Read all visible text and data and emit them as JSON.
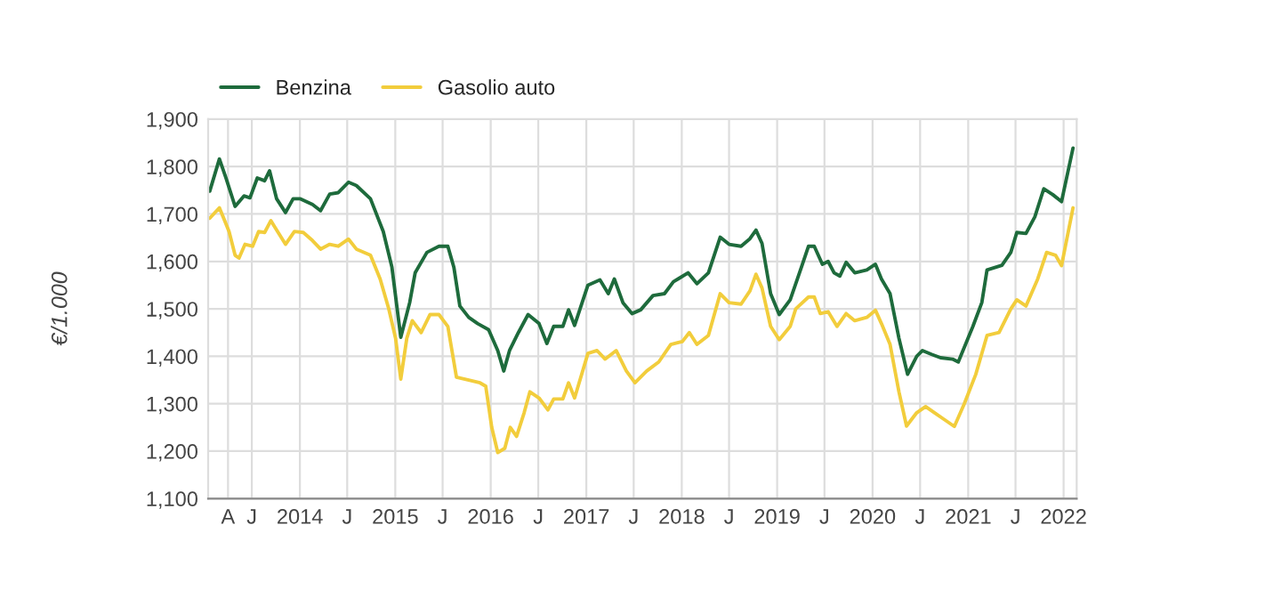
{
  "chart_data": {
    "type": "line",
    "ylabel": "€/1.000",
    "legend": "top left",
    "grid": true,
    "line_style": "solid",
    "xlim": [
      "2013-01-15",
      "2022-02-20"
    ],
    "xticks": [
      {
        "value": "2013-04-01",
        "label": "A"
      },
      {
        "value": "2013-07-01",
        "label": "J"
      },
      {
        "value": "2014-01-01",
        "label": "2014"
      },
      {
        "value": "2014-07-01",
        "label": "J"
      },
      {
        "value": "2015-01-01",
        "label": "2015"
      },
      {
        "value": "2015-07-01",
        "label": "J"
      },
      {
        "value": "2016-01-01",
        "label": "2016"
      },
      {
        "value": "2016-07-01",
        "label": "J"
      },
      {
        "value": "2017-01-01",
        "label": "2017"
      },
      {
        "value": "2017-07-01",
        "label": "J"
      },
      {
        "value": "2018-01-01",
        "label": "2018"
      },
      {
        "value": "2018-07-01",
        "label": "J"
      },
      {
        "value": "2019-01-01",
        "label": "2019"
      },
      {
        "value": "2019-07-01",
        "label": "J"
      },
      {
        "value": "2020-01-01",
        "label": "2020"
      },
      {
        "value": "2020-07-01",
        "label": "J"
      },
      {
        "value": "2021-01-01",
        "label": "2021"
      },
      {
        "value": "2021-07-01",
        "label": "J"
      },
      {
        "value": "2022-01-01",
        "label": "2022"
      }
    ],
    "ylim": [
      1100,
      1900
    ],
    "yticks": [
      {
        "value": 1100,
        "label": "1,100"
      },
      {
        "value": 1200,
        "label": "1,200"
      },
      {
        "value": 1300,
        "label": "1,300"
      },
      {
        "value": 1400,
        "label": "1,400"
      },
      {
        "value": 1500,
        "label": "1,500"
      },
      {
        "value": 1600,
        "label": "1,600"
      },
      {
        "value": 1700,
        "label": "1,700"
      },
      {
        "value": 1800,
        "label": "1,800"
      },
      {
        "value": 1900,
        "label": "1,900"
      }
    ],
    "series": [
      {
        "name": "Benzina",
        "color": "#1e6b3c",
        "x": [
          "2013-01-21",
          "2013-02-27",
          "2013-03-24",
          "2013-04-28",
          "2013-06-01",
          "2013-06-24",
          "2013-07-22",
          "2013-08-19",
          "2013-09-07",
          "2013-10-04",
          "2013-11-07",
          "2013-12-06",
          "2014-01-03",
          "2014-02-18",
          "2014-03-21",
          "2014-04-25",
          "2014-05-28",
          "2014-07-06",
          "2014-08-05",
          "2014-09-28",
          "2014-11-16",
          "2014-12-19",
          "2015-01-22",
          "2015-02-25",
          "2015-03-18",
          "2015-05-02",
          "2015-06-17",
          "2015-07-21",
          "2015-08-13",
          "2015-09-05",
          "2015-10-09",
          "2015-11-12",
          "2015-12-24",
          "2016-01-28",
          "2016-02-20",
          "2016-03-13",
          "2016-04-16",
          "2016-05-23",
          "2016-07-04",
          "2016-08-03",
          "2016-08-29",
          "2016-10-03",
          "2016-10-25",
          "2016-11-17",
          "2017-01-07",
          "2017-02-22",
          "2017-03-26",
          "2017-04-18",
          "2017-05-21",
          "2017-06-25",
          "2017-07-28",
          "2017-09-13",
          "2017-10-27",
          "2017-11-30",
          "2018-01-25",
          "2018-02-28",
          "2018-04-13",
          "2018-05-28",
          "2018-07-01",
          "2018-08-16",
          "2018-09-19",
          "2018-10-12",
          "2018-11-04",
          "2018-12-07",
          "2019-01-09",
          "2019-02-20",
          "2019-04-04",
          "2019-05-01",
          "2019-05-23",
          "2019-06-23",
          "2019-07-15",
          "2019-08-07",
          "2019-08-29",
          "2019-09-22",
          "2019-10-25",
          "2019-12-10",
          "2020-01-12",
          "2020-02-04",
          "2020-03-08",
          "2020-04-11",
          "2020-05-14",
          "2020-06-18",
          "2020-07-10",
          "2020-08-14",
          "2020-09-17",
          "2020-11-02",
          "2020-11-24",
          "2021-01-19",
          "2021-02-22",
          "2021-03-14",
          "2021-05-10",
          "2021-06-13",
          "2021-07-06",
          "2021-08-10",
          "2021-09-13",
          "2021-10-17",
          "2021-11-20",
          "2021-12-24",
          "2022-02-06"
        ],
        "values": [
          1748,
          1816,
          1776,
          1716,
          1738,
          1734,
          1776,
          1770,
          1791,
          1732,
          1703,
          1732,
          1732,
          1720,
          1707,
          1742,
          1745,
          1767,
          1760,
          1732,
          1663,
          1588,
          1440,
          1513,
          1576,
          1619,
          1632,
          1632,
          1588,
          1506,
          1482,
          1469,
          1456,
          1412,
          1369,
          1412,
          1450,
          1488,
          1469,
          1427,
          1463,
          1463,
          1498,
          1465,
          1550,
          1561,
          1532,
          1563,
          1513,
          1490,
          1498,
          1528,
          1532,
          1557,
          1576,
          1553,
          1576,
          1651,
          1636,
          1632,
          1648,
          1666,
          1638,
          1532,
          1488,
          1519,
          1588,
          1632,
          1632,
          1594,
          1600,
          1576,
          1569,
          1598,
          1576,
          1582,
          1594,
          1563,
          1532,
          1438,
          1362,
          1400,
          1412,
          1404,
          1397,
          1394,
          1388,
          1463,
          1513,
          1582,
          1592,
          1619,
          1661,
          1659,
          1694,
          1753,
          1741,
          1726,
          1839
        ]
      },
      {
        "name": "Gasolio auto",
        "color": "#f2cd3c",
        "x": [
          "2013-01-21",
          "2013-02-27",
          "2013-04-05",
          "2013-04-28",
          "2013-05-13",
          "2013-06-05",
          "2013-07-04",
          "2013-07-27",
          "2013-08-19",
          "2013-09-12",
          "2013-10-04",
          "2013-11-07",
          "2013-12-11",
          "2014-01-14",
          "2014-02-18",
          "2014-03-21",
          "2014-04-25",
          "2014-05-28",
          "2014-07-06",
          "2014-08-05",
          "2014-09-28",
          "2014-11-04",
          "2014-12-07",
          "2015-01-02",
          "2015-01-22",
          "2015-02-14",
          "2015-03-07",
          "2015-04-10",
          "2015-05-14",
          "2015-06-17",
          "2015-07-21",
          "2015-08-23",
          "2015-10-09",
          "2015-11-21",
          "2015-12-13",
          "2016-01-05",
          "2016-01-28",
          "2016-02-24",
          "2016-03-16",
          "2016-04-09",
          "2016-05-08",
          "2016-05-30",
          "2016-07-04",
          "2016-08-07",
          "2016-08-29",
          "2016-10-03",
          "2016-10-25",
          "2016-11-17",
          "2017-01-07",
          "2017-02-11",
          "2017-03-14",
          "2017-04-25",
          "2017-06-03",
          "2017-07-06",
          "2017-08-20",
          "2017-10-05",
          "2017-11-20",
          "2018-01-03",
          "2018-01-30",
          "2018-02-28",
          "2018-04-13",
          "2018-05-28",
          "2018-07-01",
          "2018-08-16",
          "2018-09-19",
          "2018-10-12",
          "2018-11-04",
          "2018-12-07",
          "2019-01-09",
          "2019-02-20",
          "2019-03-13",
          "2019-05-01",
          "2019-05-23",
          "2019-06-15",
          "2019-07-15",
          "2019-08-18",
          "2019-09-22",
          "2019-10-25",
          "2019-12-10",
          "2020-01-12",
          "2020-02-04",
          "2020-03-08",
          "2020-04-11",
          "2020-05-10",
          "2020-06-18",
          "2020-07-22",
          "2020-08-25",
          "2020-09-28",
          "2020-11-09",
          "2020-12-17",
          "2021-01-30",
          "2021-03-14",
          "2021-04-29",
          "2021-06-13",
          "2021-07-06",
          "2021-08-10",
          "2021-09-24",
          "2021-10-28",
          "2021-12-01",
          "2021-12-24",
          "2022-02-06"
        ],
        "values": [
          1691,
          1713,
          1663,
          1613,
          1607,
          1636,
          1632,
          1663,
          1661,
          1686,
          1666,
          1636,
          1663,
          1661,
          1644,
          1626,
          1636,
          1632,
          1647,
          1626,
          1613,
          1563,
          1500,
          1438,
          1352,
          1438,
          1475,
          1450,
          1488,
          1488,
          1463,
          1356,
          1350,
          1344,
          1337,
          1250,
          1197,
          1206,
          1250,
          1231,
          1281,
          1325,
          1312,
          1287,
          1310,
          1310,
          1344,
          1312,
          1406,
          1412,
          1394,
          1412,
          1369,
          1344,
          1369,
          1388,
          1425,
          1431,
          1450,
          1425,
          1444,
          1532,
          1513,
          1510,
          1538,
          1573,
          1544,
          1463,
          1435,
          1463,
          1500,
          1525,
          1525,
          1490,
          1494,
          1463,
          1490,
          1475,
          1482,
          1497,
          1469,
          1425,
          1325,
          1253,
          1281,
          1294,
          1281,
          1268,
          1252,
          1300,
          1362,
          1444,
          1450,
          1500,
          1519,
          1506,
          1563,
          1619,
          1613,
          1591,
          1713
        ]
      }
    ]
  }
}
